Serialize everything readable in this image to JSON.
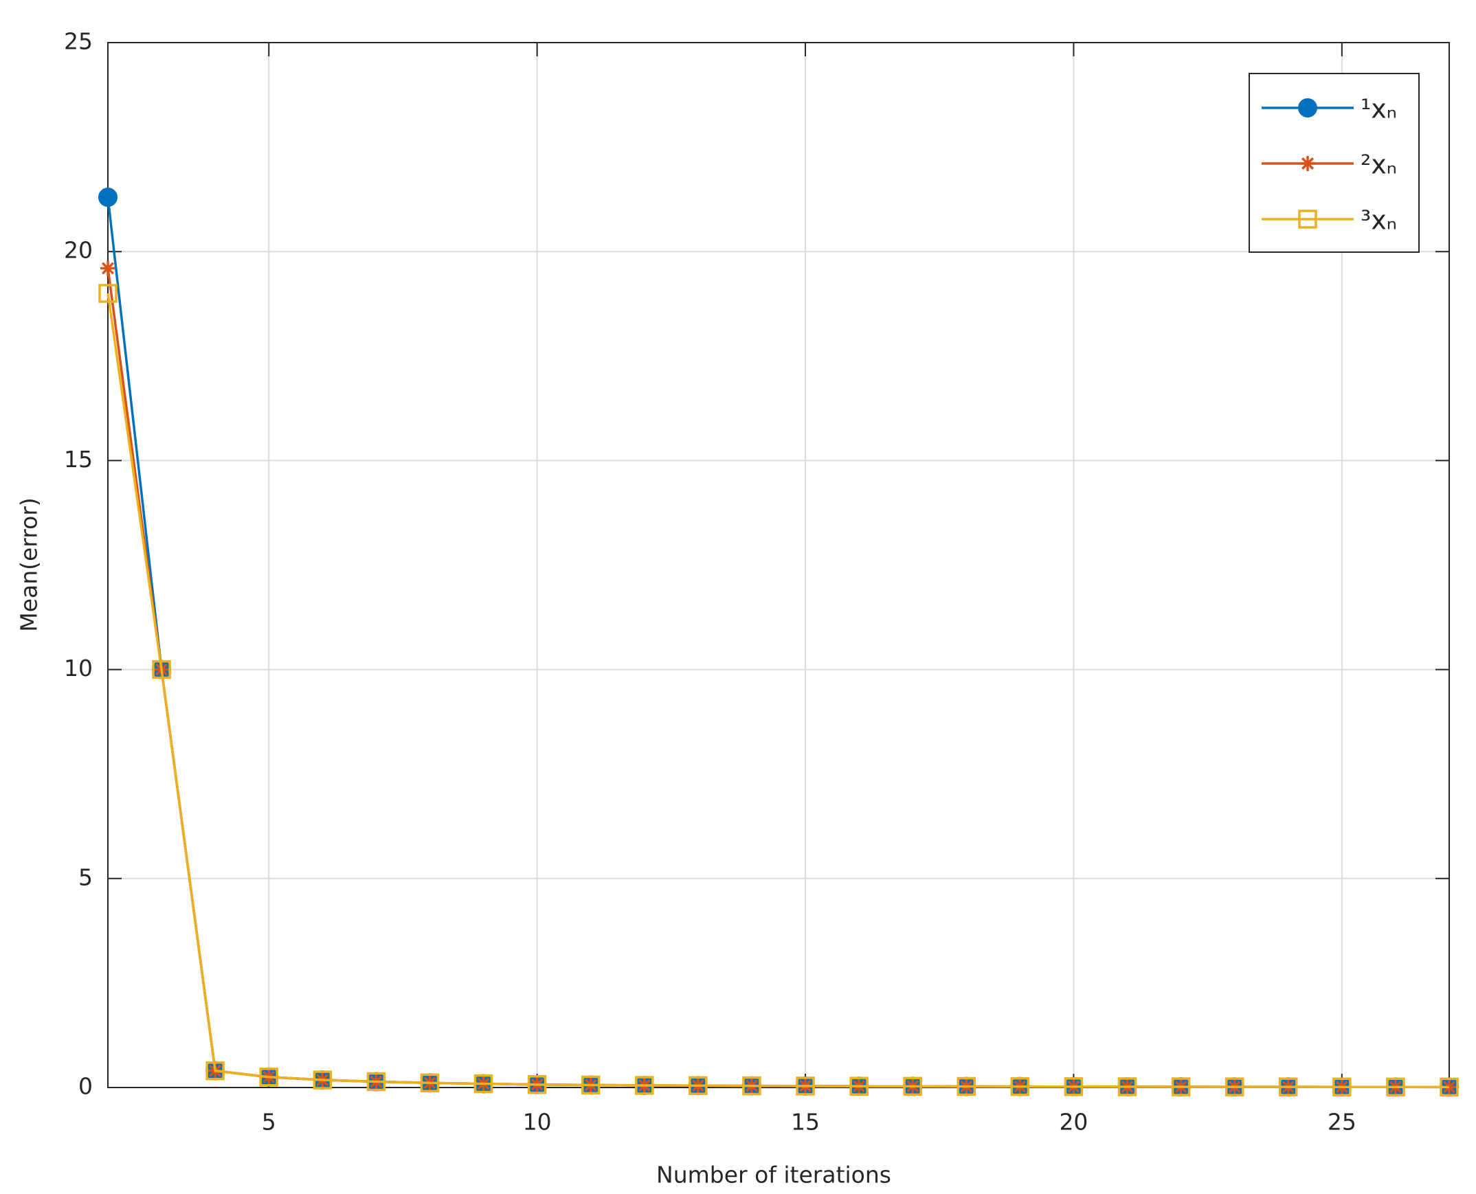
{
  "chart_data": {
    "type": "line",
    "xlabel": "Number of iterations",
    "ylabel": "Mean(error)",
    "x": [
      2,
      3,
      4,
      5,
      6,
      7,
      8,
      9,
      10,
      11,
      12,
      13,
      14,
      15,
      16,
      17,
      18,
      19,
      20,
      21,
      22,
      23,
      24,
      25,
      26,
      27
    ],
    "series": [
      {
        "name": "¹xₙ",
        "color": "#0072BD",
        "marker": "circle",
        "values": [
          21.3,
          10,
          0.4,
          0.25,
          0.18,
          0.14,
          0.11,
          0.09,
          0.07,
          0.06,
          0.05,
          0.045,
          0.04,
          0.035,
          0.03,
          0.028,
          0.025,
          0.022,
          0.02,
          0.018,
          0.016,
          0.015,
          0.014,
          0.013,
          0.012,
          0.011
        ]
      },
      {
        "name": "²xₙ",
        "color": "#D95319",
        "marker": "asterisk",
        "values": [
          19.6,
          10,
          0.4,
          0.25,
          0.18,
          0.14,
          0.11,
          0.09,
          0.07,
          0.06,
          0.05,
          0.045,
          0.04,
          0.035,
          0.03,
          0.028,
          0.025,
          0.022,
          0.02,
          0.018,
          0.016,
          0.015,
          0.014,
          0.013,
          0.012,
          0.011
        ]
      },
      {
        "name": "³xₙ",
        "color": "#EDB120",
        "marker": "square",
        "values": [
          19.0,
          10,
          0.4,
          0.25,
          0.18,
          0.14,
          0.11,
          0.09,
          0.07,
          0.06,
          0.05,
          0.045,
          0.04,
          0.035,
          0.03,
          0.028,
          0.025,
          0.022,
          0.02,
          0.018,
          0.016,
          0.015,
          0.014,
          0.013,
          0.012,
          0.011
        ]
      }
    ],
    "xlim": [
      2,
      27
    ],
    "xticks": [
      5,
      10,
      15,
      20,
      25
    ],
    "ylim": [
      0,
      25
    ],
    "yticks": [
      0,
      5,
      10,
      15,
      20,
      25
    ],
    "grid": true,
    "legend": "top-right"
  }
}
